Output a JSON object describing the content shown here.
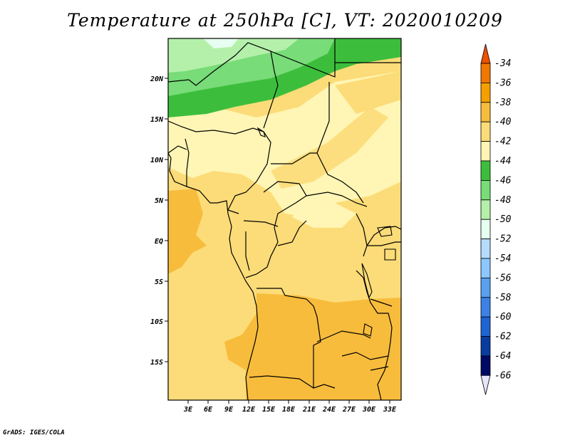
{
  "title": "Temperature at 250hPa [C], VT: 2020010209",
  "footer": "GrADS: IGES/COLA",
  "map": {
    "lat_labels": [
      "20N",
      "15N",
      "10N",
      "5N",
      "EQ",
      "5S",
      "10S",
      "15S"
    ],
    "lon_labels": [
      "3E",
      "6E",
      "9E",
      "12E",
      "15E",
      "18E",
      "21E",
      "24E",
      "27E",
      "30E",
      "33E"
    ]
  },
  "colorbar": {
    "labels": [
      "-34",
      "-36",
      "-38",
      "-40",
      "-42",
      "-44",
      "-46",
      "-48",
      "-50",
      "-52",
      "-54",
      "-56",
      "-58",
      "-60",
      "-62",
      "-64",
      "-66"
    ],
    "colors": [
      "#f05000",
      "#f07800",
      "#f5a000",
      "#f8bc3c",
      "#fcdc78",
      "#fff5b4",
      "#3cbe3c",
      "#78dc78",
      "#b4f0aa",
      "#e6fff0",
      "#b4dcff",
      "#8cc8ff",
      "#5aa0f0",
      "#3c82e6",
      "#1e64d2",
      "#0a3ca0",
      "#000a64",
      "#e6e6fa"
    ]
  }
}
